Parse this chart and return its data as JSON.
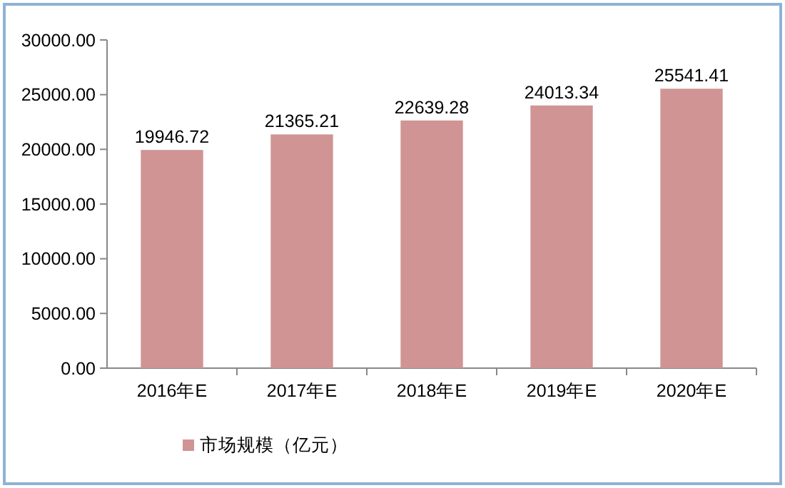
{
  "chart_data": {
    "type": "bar",
    "categories": [
      "2016年E",
      "2017年E",
      "2018年E",
      "2019年E",
      "2020年E"
    ],
    "series": [
      {
        "name": "市场规模（亿元）",
        "color": "#d09494",
        "values": [
          19946.72,
          21365.21,
          22639.28,
          24013.34,
          25541.41
        ]
      }
    ],
    "ylim": [
      0,
      30000
    ],
    "yticks": [
      {
        "value": 0,
        "label": "0.00"
      },
      {
        "value": 5000,
        "label": "5000.00"
      },
      {
        "value": 10000,
        "label": "10000.00"
      },
      {
        "value": 15000,
        "label": "15000.00"
      },
      {
        "value": 20000,
        "label": "20000.00"
      },
      {
        "value": 25000,
        "label": "25000.00"
      },
      {
        "value": 30000,
        "label": "30000.00"
      }
    ],
    "data_labels": true,
    "legend": "bottom left",
    "grid": false
  }
}
